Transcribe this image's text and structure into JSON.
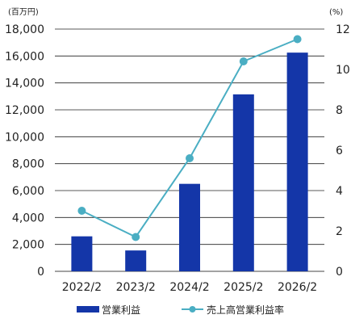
{
  "chart_data": {
    "type": "bar",
    "categories": [
      "2022/2",
      "2023/2",
      "2024/2",
      "2025/2",
      "2026/2"
    ],
    "series": [
      {
        "name": "営業利益",
        "type": "bar",
        "axis": "left",
        "color": "#1436a8",
        "values": [
          2600,
          1550,
          6500,
          13150,
          16250
        ]
      },
      {
        "name": "売上高営業利益率",
        "type": "line",
        "axis": "right",
        "color": "#4aaec3",
        "values": [
          3.0,
          1.7,
          5.6,
          10.4,
          11.5
        ]
      }
    ],
    "y_left": {
      "unit_label": "(百万円)",
      "ylim": [
        0,
        18000
      ],
      "ticks": [
        "0",
        "2,000",
        "4,000",
        "6,000",
        "8,000",
        "10,000",
        "12,000",
        "14,000",
        "16,000",
        "18,000"
      ]
    },
    "y_right": {
      "unit_label": "(%)",
      "ylim": [
        0,
        12
      ],
      "ticks": [
        "0",
        "2",
        "4",
        "6",
        "8",
        "10",
        "12"
      ]
    },
    "grid": true,
    "legend_position": "bottom"
  }
}
